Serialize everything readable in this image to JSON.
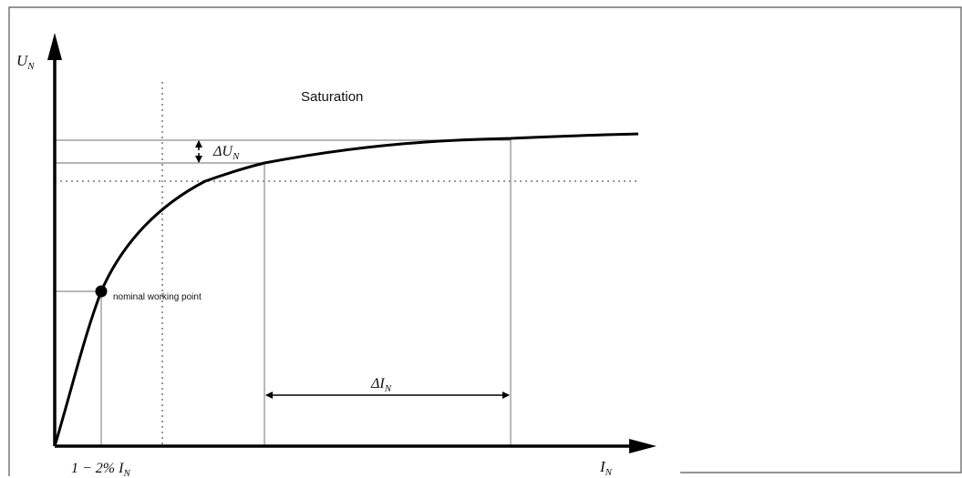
{
  "labels": {
    "y_axis": "U",
    "y_axis_sub": "N",
    "x_axis": "I",
    "x_axis_sub": "N",
    "saturation": "Saturation",
    "delta_u": "ΔU",
    "delta_u_sub": "N",
    "delta_i": "ΔI",
    "delta_i_sub": "N",
    "working_point": "nominal working point",
    "x_tick": "1 − 2% I",
    "x_tick_sub": "N"
  },
  "colors": {
    "curve": "#000000",
    "guide": "#8c8c8c",
    "frame": "#555555"
  }
}
